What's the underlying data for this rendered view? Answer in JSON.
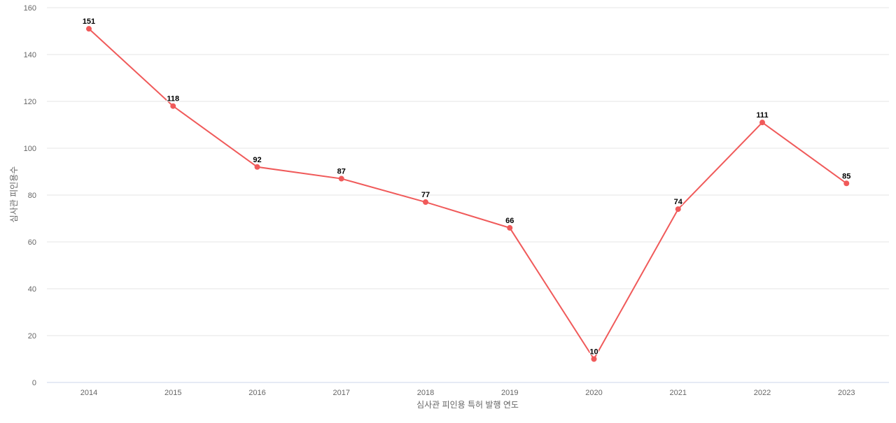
{
  "chart_data": {
    "type": "line",
    "title": "",
    "xlabel": "심사관 피인용 특허 발행 연도",
    "ylabel": "심사관 피인용수",
    "categories": [
      "2014",
      "2015",
      "2016",
      "2017",
      "2018",
      "2019",
      "2020",
      "2021",
      "2022",
      "2023"
    ],
    "series": [
      {
        "name": "심사관 피인용수",
        "color": "#f05a5a",
        "values": [
          151,
          118,
          92,
          87,
          77,
          66,
          10,
          74,
          111,
          85
        ]
      }
    ],
    "ylim": [
      0,
      160
    ],
    "yticks": [
      0,
      20,
      40,
      60,
      80,
      100,
      120,
      140,
      160
    ],
    "grid": true,
    "legend": "none",
    "data_labels": true
  }
}
